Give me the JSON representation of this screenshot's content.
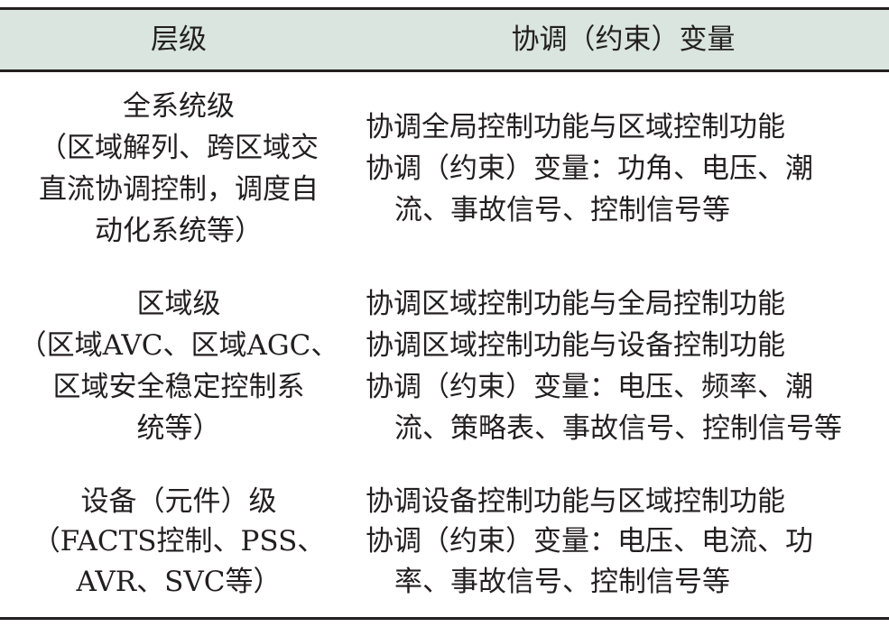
{
  "table": {
    "header": {
      "level": "层级",
      "variables": "协调（约束）变量"
    },
    "rows": [
      {
        "level_lines": [
          "全系统级",
          "（区域解列、跨区域交",
          "直流协调控制，调度自",
          "动化系统等）"
        ],
        "variable_lines": [
          "协调全局控制功能与区域控制功能",
          "协调（约束）变量：功角、电压、潮",
          "流、事故信号、控制信号等"
        ]
      },
      {
        "level_lines": [
          "区域级",
          "（区域AVC、区域AGC、",
          "区域安全稳定控制系",
          "统等）"
        ],
        "variable_lines": [
          "协调区域控制功能与全局控制功能",
          "协调区域控制功能与设备控制功能",
          "协调（约束）变量：电压、频率、潮",
          "流、策略表、事故信号、控制信号等"
        ]
      },
      {
        "level_lines": [
          "设备（元件）级",
          "（FACTS控制、PSS、",
          "AVR、SVC等）"
        ],
        "variable_lines": [
          "协调设备控制功能与区域控制功能",
          "协调（约束）变量：电压、电流、功",
          "率、事故信号、控制信号等"
        ]
      }
    ]
  },
  "colors": {
    "header_bg": "#d9e5de",
    "rule": "#231f20"
  }
}
